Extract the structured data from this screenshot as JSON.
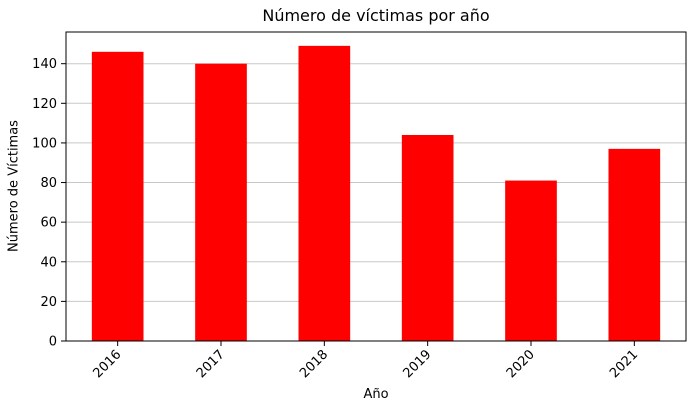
{
  "chart_data": {
    "type": "bar",
    "title": "Número de víctimas por año",
    "xlabel": "Año",
    "ylabel": "Número de Víctimas",
    "categories": [
      "2016",
      "2017",
      "2018",
      "2019",
      "2020",
      "2021"
    ],
    "values": [
      146,
      140,
      149,
      104,
      81,
      97
    ],
    "ylim": [
      0,
      156
    ],
    "yticks": [
      0,
      20,
      40,
      60,
      80,
      100,
      120,
      140
    ],
    "grid": "horizontal",
    "bar_color": "#ff0000",
    "grid_color": "#c8c8c8"
  }
}
